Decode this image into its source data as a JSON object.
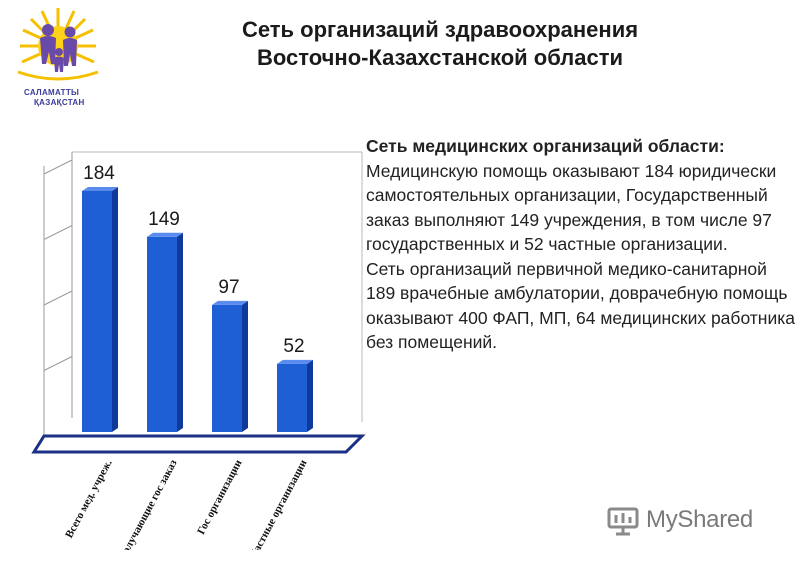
{
  "header": {
    "title_line1": "Сеть организаций здравоохранения",
    "title_line2": "Восточно-Казахстанской области"
  },
  "logo": {
    "text_line1": "САЛАМАТТЫ",
    "text_line2": "ҚАЗАҚСТАН"
  },
  "chart_data": {
    "type": "bar",
    "categories": [
      "Всего мед. учреж.",
      "Получающие гос заказ",
      "Гос организации",
      "Частные организации"
    ],
    "values": [
      184,
      149,
      97,
      52
    ],
    "value_labels": [
      "184",
      "149",
      "97",
      "52"
    ],
    "title": "",
    "xlabel": "",
    "ylabel": "",
    "ylim": [
      0,
      200
    ],
    "grid": true,
    "legend": "none",
    "bar_color": "#1f5fd6",
    "bar_side_color": "#0f3a9c",
    "floor_color": "#1a2f86"
  },
  "description": {
    "heading": "Сеть медицинских организаций области:",
    "paragraph1": "Медицинскую помощь оказывают 184 юридически самостоятельных организации, Государственный заказ выполняют 149 учреждения, в том числе 97 государственных и 52 частные организации.",
    "paragraph2": "Сеть организаций первичной медико-санитарной 189 врачебные амбулатории, доврачебную помощь оказывают 400 ФАП, МП, 64 медицинских работника без помещений."
  },
  "watermark": {
    "text": "MyShared",
    "icon": "myshared-logo-icon"
  }
}
